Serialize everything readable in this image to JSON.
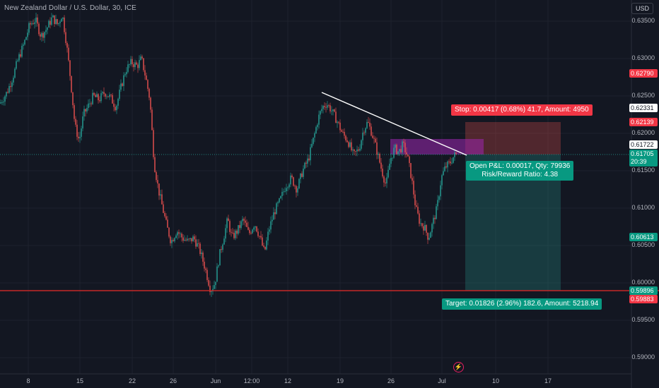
{
  "header": {
    "symbol": "New Zealand Dollar / U.S. Dollar, 30, ICE",
    "currency": "USD"
  },
  "price_axis": {
    "ticks": [
      "0.63500",
      "0.63000",
      "0.62500",
      "0.62000",
      "0.61500",
      "0.61000",
      "0.60500",
      "0.60000",
      "0.59500",
      "0.59000"
    ]
  },
  "price_tags": {
    "stop": "0.62790",
    "current_white": "0.62331",
    "target_stop_red": "0.62139",
    "entry_white": "0.61722",
    "last_price": "0.61705",
    "countdown": "20:39",
    "tp": "0.60613",
    "support_green": "0.59896",
    "support_red": "0.59883"
  },
  "time_axis": {
    "labels": [
      "8",
      "15",
      "22",
      "26",
      "Jun",
      "12:00",
      "12",
      "19",
      "26",
      "Jul",
      "10",
      "17"
    ]
  },
  "position": {
    "stop_label": "Stop: 0.00417 (0.68%) 41.7, Amount: 4950",
    "pnl_line1": "Open P&L: 0.00017, Qty: 79936",
    "pnl_line2": "Risk/Reward Ratio: 4.38",
    "target_label": "Target: 0.01826 (2.96%) 182.6, Amount: 5218.94"
  },
  "colors": {
    "bg": "#131722",
    "up": "#26a69a",
    "down": "#ef5350",
    "support": "#c62828",
    "trend": "#ffffff"
  },
  "series_path": [
    [
      0,
      0.624
    ],
    [
      10,
      0.6255
    ],
    [
      18,
      0.6275
    ],
    [
      26,
      0.63
    ],
    [
      34,
      0.632
    ],
    [
      42,
      0.6345
    ],
    [
      50,
      0.6352
    ],
    [
      58,
      0.633
    ],
    [
      66,
      0.634
    ],
    [
      74,
      0.6355
    ],
    [
      82,
      0.6345
    ],
    [
      88,
      0.636
    ],
    [
      94,
      0.632
    ],
    [
      100,
      0.627
    ],
    [
      106,
      0.621
    ],
    [
      112,
      0.619
    ],
    [
      118,
      0.6225
    ],
    [
      124,
      0.6235
    ],
    [
      132,
      0.625
    ],
    [
      140,
      0.6245
    ],
    [
      148,
      0.6255
    ],
    [
      156,
      0.6248
    ],
    [
      164,
      0.6235
    ],
    [
      172,
      0.6265
    ],
    [
      178,
      0.6285
    ],
    [
      186,
      0.6295
    ],
    [
      194,
      0.629
    ],
    [
      200,
      0.63
    ],
    [
      206,
      0.6275
    ],
    [
      212,
      0.6245
    ],
    [
      218,
      0.616
    ],
    [
      224,
      0.6125
    ],
    [
      230,
      0.61
    ],
    [
      236,
      0.6075
    ],
    [
      242,
      0.6055
    ],
    [
      250,
      0.607
    ],
    [
      258,
      0.606
    ],
    [
      266,
      0.6055
    ],
    [
      274,
      0.606
    ],
    [
      282,
      0.6045
    ],
    [
      290,
      0.602
    ],
    [
      298,
      0.599
    ],
    [
      304,
      0.6
    ],
    [
      310,
      0.6035
    ],
    [
      316,
      0.606
    ],
    [
      322,
      0.6085
    ],
    [
      328,
      0.606
    ],
    [
      336,
      0.607
    ],
    [
      344,
      0.6085
    ],
    [
      352,
      0.6065
    ],
    [
      360,
      0.608
    ],
    [
      368,
      0.606
    ],
    [
      374,
      0.604
    ],
    [
      380,
      0.607
    ],
    [
      388,
      0.6095
    ],
    [
      396,
      0.611
    ],
    [
      404,
      0.613
    ],
    [
      412,
      0.614
    ],
    [
      420,
      0.6125
    ],
    [
      428,
      0.615
    ],
    [
      436,
      0.6165
    ],
    [
      444,
      0.6195
    ],
    [
      450,
      0.622
    ],
    [
      456,
      0.6235
    ],
    [
      462,
      0.624
    ],
    [
      468,
      0.6232
    ],
    [
      476,
      0.6218
    ],
    [
      484,
      0.62
    ],
    [
      492,
      0.619
    ],
    [
      500,
      0.617
    ],
    [
      508,
      0.618
    ],
    [
      514,
      0.6205
    ],
    [
      520,
      0.6215
    ],
    [
      526,
      0.62
    ],
    [
      532,
      0.618
    ],
    [
      540,
      0.615
    ],
    [
      546,
      0.613
    ],
    [
      552,
      0.6165
    ],
    [
      558,
      0.618
    ],
    [
      564,
      0.6175
    ],
    [
      570,
      0.6185
    ],
    [
      576,
      0.617
    ],
    [
      582,
      0.614
    ],
    [
      588,
      0.61
    ],
    [
      594,
      0.608
    ],
    [
      600,
      0.6075
    ],
    [
      606,
      0.606
    ],
    [
      612,
      0.608
    ],
    [
      618,
      0.61
    ],
    [
      624,
      0.614
    ],
    [
      630,
      0.6155
    ],
    [
      636,
      0.616
    ],
    [
      642,
      0.617
    ],
    [
      646,
      0.6172
    ]
  ]
}
